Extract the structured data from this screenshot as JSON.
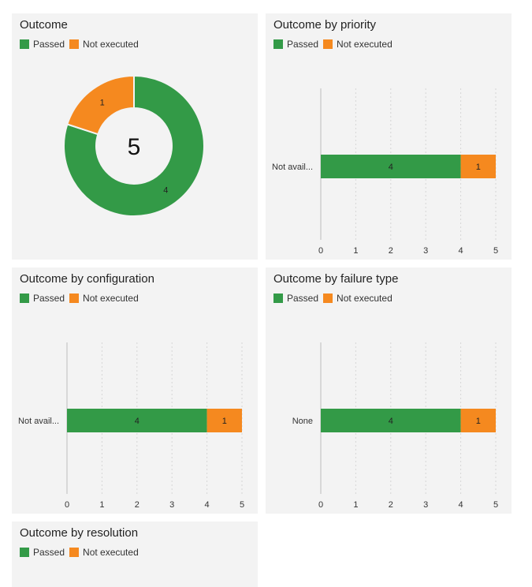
{
  "legend": {
    "passed_label": "Passed",
    "not_executed_label": "Not executed",
    "passed_color": "#339a47",
    "not_executed_color": "#f5891f"
  },
  "cards": {
    "outcome": {
      "title": "Outcome"
    },
    "priority": {
      "title": "Outcome by priority"
    },
    "configuration": {
      "title": "Outcome by configuration"
    },
    "failure_type": {
      "title": "Outcome by failure type"
    },
    "resolution": {
      "title": "Outcome by resolution"
    }
  },
  "chart_data": [
    {
      "type": "pie",
      "title": "Outcome",
      "center_label": "5",
      "categories": [
        "Passed",
        "Not executed"
      ],
      "values": [
        4,
        1
      ]
    },
    {
      "type": "bar",
      "title": "Outcome by priority",
      "orientation": "horizontal",
      "stacked": true,
      "categories": [
        "Not avail..."
      ],
      "series": [
        {
          "name": "Passed",
          "values": [
            4
          ]
        },
        {
          "name": "Not executed",
          "values": [
            1
          ]
        }
      ],
      "xlim": [
        0,
        5
      ],
      "ticks": [
        "0",
        "1",
        "2",
        "3",
        "4",
        "5"
      ]
    },
    {
      "type": "bar",
      "title": "Outcome by configuration",
      "orientation": "horizontal",
      "stacked": true,
      "categories": [
        "Not avail..."
      ],
      "series": [
        {
          "name": "Passed",
          "values": [
            4
          ]
        },
        {
          "name": "Not executed",
          "values": [
            1
          ]
        }
      ],
      "xlim": [
        0,
        5
      ],
      "ticks": [
        "0",
        "1",
        "2",
        "3",
        "4",
        "5"
      ]
    },
    {
      "type": "bar",
      "title": "Outcome by failure type",
      "orientation": "horizontal",
      "stacked": true,
      "categories": [
        "None"
      ],
      "series": [
        {
          "name": "Passed",
          "values": [
            4
          ]
        },
        {
          "name": "Not executed",
          "values": [
            1
          ]
        }
      ],
      "xlim": [
        0,
        5
      ],
      "ticks": [
        "0",
        "1",
        "2",
        "3",
        "4",
        "5"
      ]
    }
  ]
}
